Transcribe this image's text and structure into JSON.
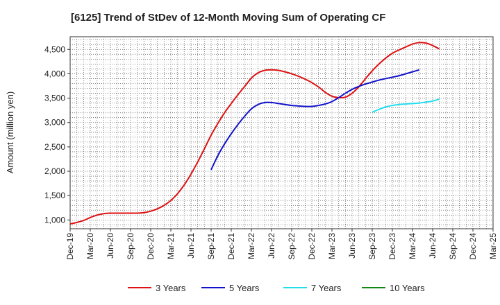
{
  "chart_data": {
    "type": "line",
    "title": "[6125]  Trend of StDev of 12-Month Moving Sum of Operating CF",
    "ylabel": "Amount (million yen)",
    "xlabel": "",
    "ylim": [
      820,
      4760
    ],
    "yticks": [
      1000,
      1500,
      2000,
      2500,
      3000,
      3500,
      4000,
      4500
    ],
    "ytick_labels": [
      "1,000",
      "1,500",
      "2,000",
      "2,500",
      "3,000",
      "3,500",
      "4,000",
      "4,500"
    ],
    "x_categories": [
      "Dec-19",
      "Mar-20",
      "Jun-20",
      "Sep-20",
      "Dec-20",
      "Mar-21",
      "Jun-21",
      "Sep-21",
      "Dec-21",
      "Mar-22",
      "Jun-22",
      "Sep-22",
      "Dec-22",
      "Mar-23",
      "Jun-23",
      "Sep-23",
      "Dec-23",
      "Mar-24",
      "Jun-24",
      "Sep-24",
      "Dec-24",
      "Mar-25"
    ],
    "grid": true,
    "legend_position": "bottom",
    "series": [
      {
        "name": "3 Years",
        "color": "#dd1111",
        "start_index": 0,
        "values": [
          920,
          950,
          990,
          1050,
          1100,
          1130,
          1140,
          1140,
          1140,
          1140,
          1140,
          1150,
          1180,
          1230,
          1300,
          1400,
          1540,
          1720,
          1940,
          2190,
          2460,
          2740,
          2980,
          3200,
          3390,
          3570,
          3740,
          3910,
          4020,
          4070,
          4080,
          4070,
          4040,
          4000,
          3950,
          3890,
          3820,
          3730,
          3620,
          3540,
          3510,
          3520,
          3600,
          3730,
          3900,
          4060,
          4200,
          4320,
          4420,
          4490,
          4550,
          4610,
          4640,
          4630,
          4580,
          4510
        ]
      },
      {
        "name": "5 Years",
        "color": "#1111cc",
        "start_index": 21,
        "values": [
          2030,
          2320,
          2560,
          2770,
          2960,
          3130,
          3280,
          3370,
          3410,
          3410,
          3390,
          3370,
          3350,
          3340,
          3330,
          3330,
          3350,
          3380,
          3430,
          3510,
          3600,
          3680,
          3740,
          3790,
          3830,
          3870,
          3900,
          3930,
          3960,
          4000,
          4040,
          4080
        ]
      },
      {
        "name": "7 Years",
        "color": "#22ddee",
        "start_index": 45,
        "values": [
          3210,
          3270,
          3320,
          3350,
          3370,
          3380,
          3390,
          3400,
          3420,
          3440,
          3480
        ]
      },
      {
        "name": "10 Years",
        "color": "#118811",
        "start_index": 0,
        "values": []
      }
    ]
  }
}
